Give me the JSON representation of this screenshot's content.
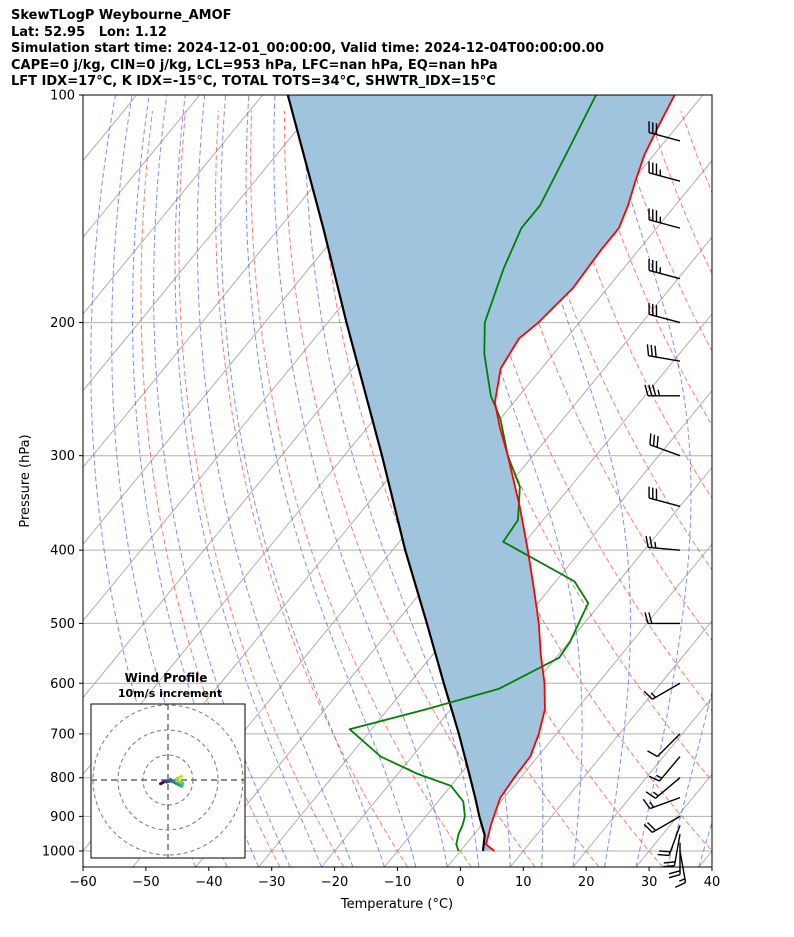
{
  "header": {
    "line1": "SkewTLogP Weybourne_AMOF",
    "line2": "Lat: 52.95   Lon: 1.12",
    "line3": "Simulation start time: 2024-12-01_00:00:00, Valid time: 2024-12-04T00:00:00.00",
    "line4": "CAPE=0 j/kg, CIN=0 j/kg, LCL=953 hPa, LFC=nan hPa, EQ=nan hPa",
    "line5": "LFT IDX=17°C, K IDX=-15°C, TOTAL TOTS=34°C, SHWTR_IDX=15°C"
  },
  "chart_data": [
    {
      "type": "line",
      "subtype": "skew-t log-p",
      "xlabel": "Temperature (°C)",
      "ylabel": "Pressure (hPa)",
      "xlim": [
        -60,
        40
      ],
      "ylim": [
        1050,
        100
      ],
      "yscale": "log",
      "x_ticks": [
        "−60",
        "−50",
        "−40",
        "−30",
        "−20",
        "−10",
        "0",
        "10",
        "20",
        "30",
        "40"
      ],
      "y_ticks": [
        "1000",
        "900",
        "800",
        "700",
        "600",
        "500",
        "400",
        "300",
        "200",
        "100"
      ],
      "grid": true,
      "colors": {
        "temperature": "#ff0000",
        "dewpoint": "#008000",
        "parcel": "#000000",
        "cape_cin_shading": "#a0c4de",
        "dry_adiabats": "#ff5555",
        "moist_adiabats": "#5566ff",
        "isotherms": "#999999"
      },
      "temperature_profile": [
        [
          1000,
          5.4
        ],
        [
          980,
          3.2
        ],
        [
          950,
          2.3
        ],
        [
          925,
          1.5
        ],
        [
          900,
          0.8
        ],
        [
          850,
          -0.6
        ],
        [
          800,
          -1.0
        ],
        [
          750,
          -1.2
        ],
        [
          700,
          -2.8
        ],
        [
          650,
          -5.0
        ],
        [
          600,
          -8.5
        ],
        [
          550,
          -12.8
        ],
        [
          500,
          -17.2
        ],
        [
          450,
          -22.5
        ],
        [
          400,
          -28.5
        ],
        [
          350,
          -35.5
        ],
        [
          300,
          -44.0
        ],
        [
          275,
          -49.0
        ],
        [
          255,
          -53.0
        ],
        [
          230,
          -56.5
        ],
        [
          210,
          -57.5
        ],
        [
          200,
          -56.5
        ],
        [
          180,
          -55.5
        ],
        [
          160,
          -56.0
        ],
        [
          150,
          -56.0
        ],
        [
          140,
          -57.5
        ],
        [
          130,
          -59.5
        ],
        [
          120,
          -61.5
        ],
        [
          110,
          -63.0
        ],
        [
          100,
          -64.5
        ]
      ],
      "dewpoint_profile": [
        [
          1000,
          -0.3
        ],
        [
          980,
          -1.5
        ],
        [
          950,
          -2.5
        ],
        [
          925,
          -3.0
        ],
        [
          900,
          -3.8
        ],
        [
          860,
          -6.0
        ],
        [
          820,
          -10.0
        ],
        [
          790,
          -17.0
        ],
        [
          750,
          -25.0
        ],
        [
          690,
          -33.5
        ],
        [
          650,
          -24.0
        ],
        [
          610,
          -15.0
        ],
        [
          555,
          -9.5
        ],
        [
          530,
          -9.8
        ],
        [
          470,
          -12.0
        ],
        [
          440,
          -17.0
        ],
        [
          390,
          -33.5
        ],
        [
          365,
          -34.0
        ],
        [
          330,
          -38.0
        ],
        [
          300,
          -44.0
        ],
        [
          268,
          -50.0
        ],
        [
          250,
          -54.5
        ],
        [
          220,
          -61.0
        ],
        [
          200,
          -65.0
        ],
        [
          170,
          -69.0
        ],
        [
          150,
          -71.5
        ],
        [
          140,
          -71.5
        ],
        [
          120,
          -74.0
        ],
        [
          100,
          -77.0
        ]
      ],
      "parcel_profile": [
        [
          1000,
          3.6
        ],
        [
          953,
          1.8
        ],
        [
          900,
          -1.5
        ],
        [
          850,
          -4.6
        ],
        [
          800,
          -8.0
        ],
        [
          700,
          -15.5
        ],
        [
          600,
          -24.5
        ],
        [
          500,
          -35.0
        ],
        [
          400,
          -48.0
        ],
        [
          300,
          -64.0
        ],
        [
          200,
          -87.0
        ],
        [
          150,
          -103.0
        ],
        [
          100,
          -126.0
        ]
      ],
      "wind_barbs": [
        {
          "p": 1000,
          "speed_kt": 15,
          "dir_deg": 170
        },
        {
          "p": 975,
          "speed_kt": 20,
          "dir_deg": 180
        },
        {
          "p": 950,
          "speed_kt": 20,
          "dir_deg": 190
        },
        {
          "p": 925,
          "speed_kt": 20,
          "dir_deg": 200
        },
        {
          "p": 900,
          "speed_kt": 20,
          "dir_deg": 240
        },
        {
          "p": 850,
          "speed_kt": 15,
          "dir_deg": 250
        },
        {
          "p": 800,
          "speed_kt": 15,
          "dir_deg": 230
        },
        {
          "p": 750,
          "speed_kt": 15,
          "dir_deg": 220
        },
        {
          "p": 700,
          "speed_kt": 10,
          "dir_deg": 225
        },
        {
          "p": 600,
          "speed_kt": 15,
          "dir_deg": 240
        },
        {
          "p": 500,
          "speed_kt": 20,
          "dir_deg": 270
        },
        {
          "p": 400,
          "speed_kt": 25,
          "dir_deg": 275
        },
        {
          "p": 350,
          "speed_kt": 30,
          "dir_deg": 285
        },
        {
          "p": 300,
          "speed_kt": 30,
          "dir_deg": 290
        },
        {
          "p": 250,
          "speed_kt": 35,
          "dir_deg": 270
        },
        {
          "p": 225,
          "speed_kt": 30,
          "dir_deg": 280
        },
        {
          "p": 200,
          "speed_kt": 30,
          "dir_deg": 285
        },
        {
          "p": 175,
          "speed_kt": 35,
          "dir_deg": 285
        },
        {
          "p": 150,
          "speed_kt": 35,
          "dir_deg": 285
        },
        {
          "p": 130,
          "speed_kt": 35,
          "dir_deg": 285
        },
        {
          "p": 115,
          "speed_kt": 30,
          "dir_deg": 285
        }
      ]
    },
    {
      "type": "line",
      "subtype": "hodograph",
      "title": "Wind Profile",
      "subtitle": "10m/s increment",
      "rings_ms": [
        10,
        20,
        30
      ],
      "points_ms": [
        [
          5.5,
          -1.5
        ],
        [
          4.5,
          -1.0
        ],
        [
          3.5,
          -0.5
        ],
        [
          4.0,
          0.5
        ],
        [
          5.5,
          1.0
        ],
        [
          6.0,
          1.5
        ],
        [
          5.5,
          2.5
        ],
        [
          4.5,
          2.0
        ],
        [
          3.5,
          1.5
        ],
        [
          2.5,
          1.0
        ],
        [
          2.0,
          0.5
        ],
        [
          1.5,
          0.5
        ],
        [
          1.0,
          -0.2
        ],
        [
          0.5,
          0.5
        ],
        [
          0.0,
          0.5
        ],
        [
          -0.5,
          0.8
        ],
        [
          -1.0,
          0.5
        ],
        [
          -1.5,
          0.5
        ],
        [
          -2.0,
          1.0
        ],
        [
          -3.0,
          1.5
        ]
      ]
    }
  ]
}
